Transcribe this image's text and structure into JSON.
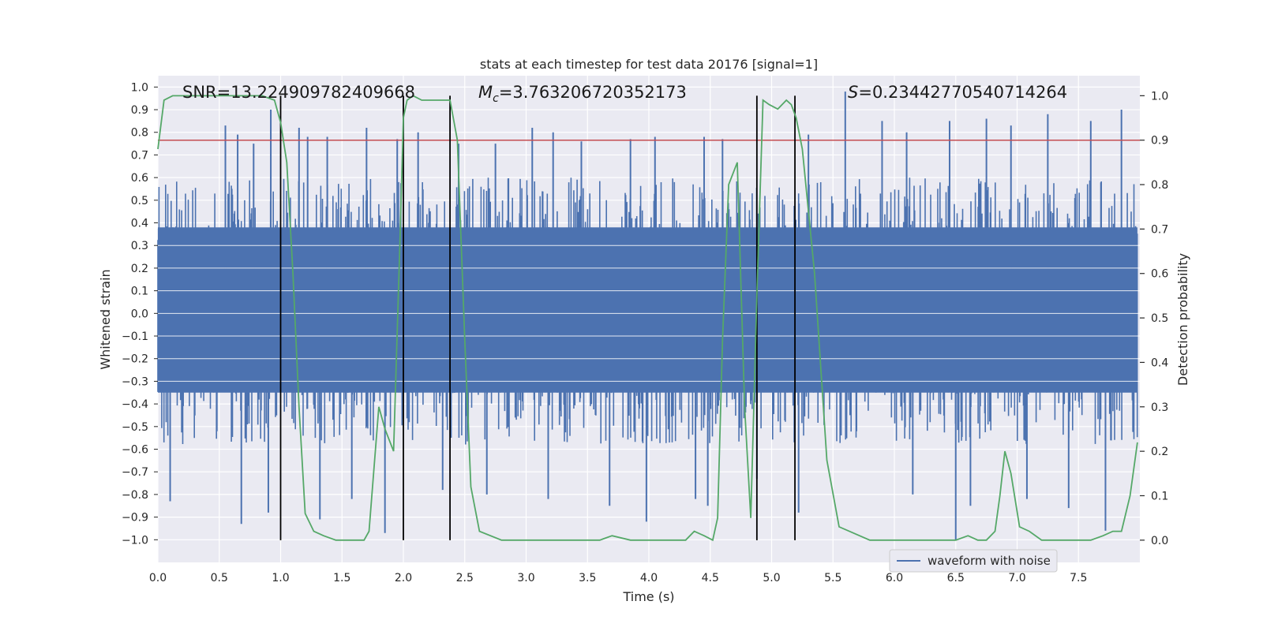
{
  "chart_data": {
    "type": "line",
    "title": "stats at each timestep for test data 20176 [signal=1]",
    "xlabel": "Time (s)",
    "ylabel_left": "Whitened strain",
    "ylabel_right": "Detection probability",
    "xlim": [
      0.0,
      8.0
    ],
    "ylim_left": [
      -1.1,
      1.05
    ],
    "ylim_right": [
      -0.05,
      1.045
    ],
    "x_ticks": [
      "0.0",
      "0.5",
      "1.0",
      "1.5",
      "2.0",
      "2.5",
      "3.0",
      "3.5",
      "4.0",
      "4.5",
      "5.0",
      "5.5",
      "6.0",
      "6.5",
      "7.0",
      "7.5"
    ],
    "y_left_ticks": [
      "1.0",
      "0.9",
      "0.8",
      "0.7",
      "0.6",
      "0.5",
      "0.4",
      "0.3",
      "0.2",
      "0.1",
      "0.0",
      "−0.1",
      "−0.2",
      "−0.3",
      "−0.4",
      "−0.5",
      "−0.6",
      "−0.7",
      "−0.8",
      "−0.9",
      "−1.0"
    ],
    "y_right_ticks": [
      "1.0",
      "0.9",
      "0.8",
      "0.7",
      "0.6",
      "0.5",
      "0.4",
      "0.3",
      "0.2",
      "0.1",
      "0.0"
    ],
    "grid": true,
    "legend": {
      "entries": [
        "waveform with noise"
      ],
      "placement": "lower-right"
    },
    "annotations": {
      "snr": "SNR=13.224909782409668",
      "mc_sym": "M",
      "mc_sub": "c",
      "mc_val": "=3.763206720352173",
      "s_sym": "S",
      "s_val": "=0.23442770540714264"
    },
    "threshold": {
      "axis": "right",
      "value": 0.9
    },
    "vertical_markers": [
      1.0,
      2.0,
      2.38,
      4.88,
      5.19
    ],
    "waveform": {
      "name": "waveform with noise",
      "band_min": -0.35,
      "band_max": 0.38,
      "mid_min": -0.58,
      "mid_max": 0.6,
      "spike_up": [
        [
          0.55,
          0.83
        ],
        [
          0.65,
          0.79
        ],
        [
          0.78,
          0.75
        ],
        [
          0.92,
          0.9
        ],
        [
          1.15,
          0.82
        ],
        [
          1.22,
          0.78
        ],
        [
          1.38,
          0.78
        ],
        [
          1.7,
          0.82
        ],
        [
          1.95,
          0.77
        ],
        [
          2.12,
          0.8
        ],
        [
          2.45,
          0.75
        ],
        [
          2.75,
          0.75
        ],
        [
          3.05,
          0.82
        ],
        [
          3.22,
          0.8
        ],
        [
          3.45,
          0.76
        ],
        [
          3.85,
          0.77
        ],
        [
          4.05,
          0.78
        ],
        [
          4.45,
          0.78
        ],
        [
          4.6,
          0.77
        ],
        [
          5.3,
          0.79
        ],
        [
          5.6,
          0.98
        ],
        [
          5.9,
          0.85
        ],
        [
          6.1,
          0.8
        ],
        [
          6.45,
          0.85
        ],
        [
          6.75,
          0.86
        ],
        [
          6.95,
          0.83
        ],
        [
          7.25,
          0.88
        ],
        [
          7.6,
          0.85
        ],
        [
          7.85,
          0.9
        ]
      ],
      "spike_down": [
        [
          0.1,
          -0.83
        ],
        [
          0.68,
          -0.93
        ],
        [
          0.9,
          -0.88
        ],
        [
          1.32,
          -0.91
        ],
        [
          1.58,
          -0.82
        ],
        [
          1.85,
          -0.97
        ],
        [
          2.32,
          -0.78
        ],
        [
          2.68,
          -0.8
        ],
        [
          3.18,
          -0.82
        ],
        [
          3.68,
          -0.85
        ],
        [
          3.98,
          -0.92
        ],
        [
          4.38,
          -0.82
        ],
        [
          4.48,
          -0.85
        ],
        [
          4.88,
          -0.73
        ],
        [
          5.22,
          -0.88
        ],
        [
          6.15,
          -0.8
        ],
        [
          6.5,
          -1.0
        ],
        [
          6.62,
          -0.85
        ],
        [
          7.08,
          -0.82
        ],
        [
          7.42,
          -0.86
        ],
        [
          7.72,
          -0.96
        ]
      ],
      "color": "#4c72b0"
    },
    "series": [
      {
        "name": "",
        "axis": "right",
        "color": "#55a868",
        "x": [
          0.0,
          0.05,
          0.12,
          0.2,
          0.4,
          0.6,
          0.85,
          0.95,
          1.0,
          1.05,
          1.1,
          1.15,
          1.2,
          1.27,
          1.35,
          1.45,
          1.6,
          1.68,
          1.72,
          1.8,
          1.85,
          1.92,
          1.97,
          2.0,
          2.03,
          2.08,
          2.15,
          2.25,
          2.32,
          2.38,
          2.44,
          2.5,
          2.55,
          2.62,
          2.8,
          3.0,
          3.2,
          3.45,
          3.6,
          3.7,
          3.85,
          4.05,
          4.3,
          4.37,
          4.45,
          4.52,
          4.56,
          4.6,
          4.65,
          4.72,
          4.78,
          4.83,
          4.88,
          4.93,
          4.98,
          5.05,
          5.12,
          5.16,
          5.2,
          5.25,
          5.35,
          5.45,
          5.55,
          5.8,
          6.0,
          6.4,
          6.5,
          6.6,
          6.68,
          6.75,
          6.82,
          6.86,
          6.9,
          6.95,
          7.02,
          7.1,
          7.2,
          7.4,
          7.6,
          7.7,
          7.78,
          7.85,
          7.92,
          7.98
        ],
        "y": [
          0.88,
          0.99,
          1.0,
          1.0,
          1.0,
          1.0,
          1.0,
          0.99,
          0.94,
          0.85,
          0.6,
          0.3,
          0.06,
          0.02,
          0.01,
          0.0,
          0.0,
          0.0,
          0.02,
          0.3,
          0.25,
          0.2,
          0.65,
          0.95,
          0.99,
          1.0,
          0.99,
          0.99,
          0.99,
          0.99,
          0.9,
          0.45,
          0.12,
          0.02,
          0.0,
          0.0,
          0.0,
          0.0,
          0.0,
          0.01,
          0.0,
          0.0,
          0.0,
          0.02,
          0.01,
          0.0,
          0.05,
          0.45,
          0.8,
          0.85,
          0.3,
          0.05,
          0.55,
          0.99,
          0.98,
          0.97,
          0.99,
          0.98,
          0.95,
          0.88,
          0.6,
          0.18,
          0.03,
          0.0,
          0.0,
          0.0,
          0.0,
          0.01,
          0.0,
          0.0,
          0.02,
          0.1,
          0.2,
          0.15,
          0.03,
          0.02,
          0.0,
          0.0,
          0.0,
          0.01,
          0.02,
          0.02,
          0.1,
          0.22
        ]
      }
    ]
  }
}
